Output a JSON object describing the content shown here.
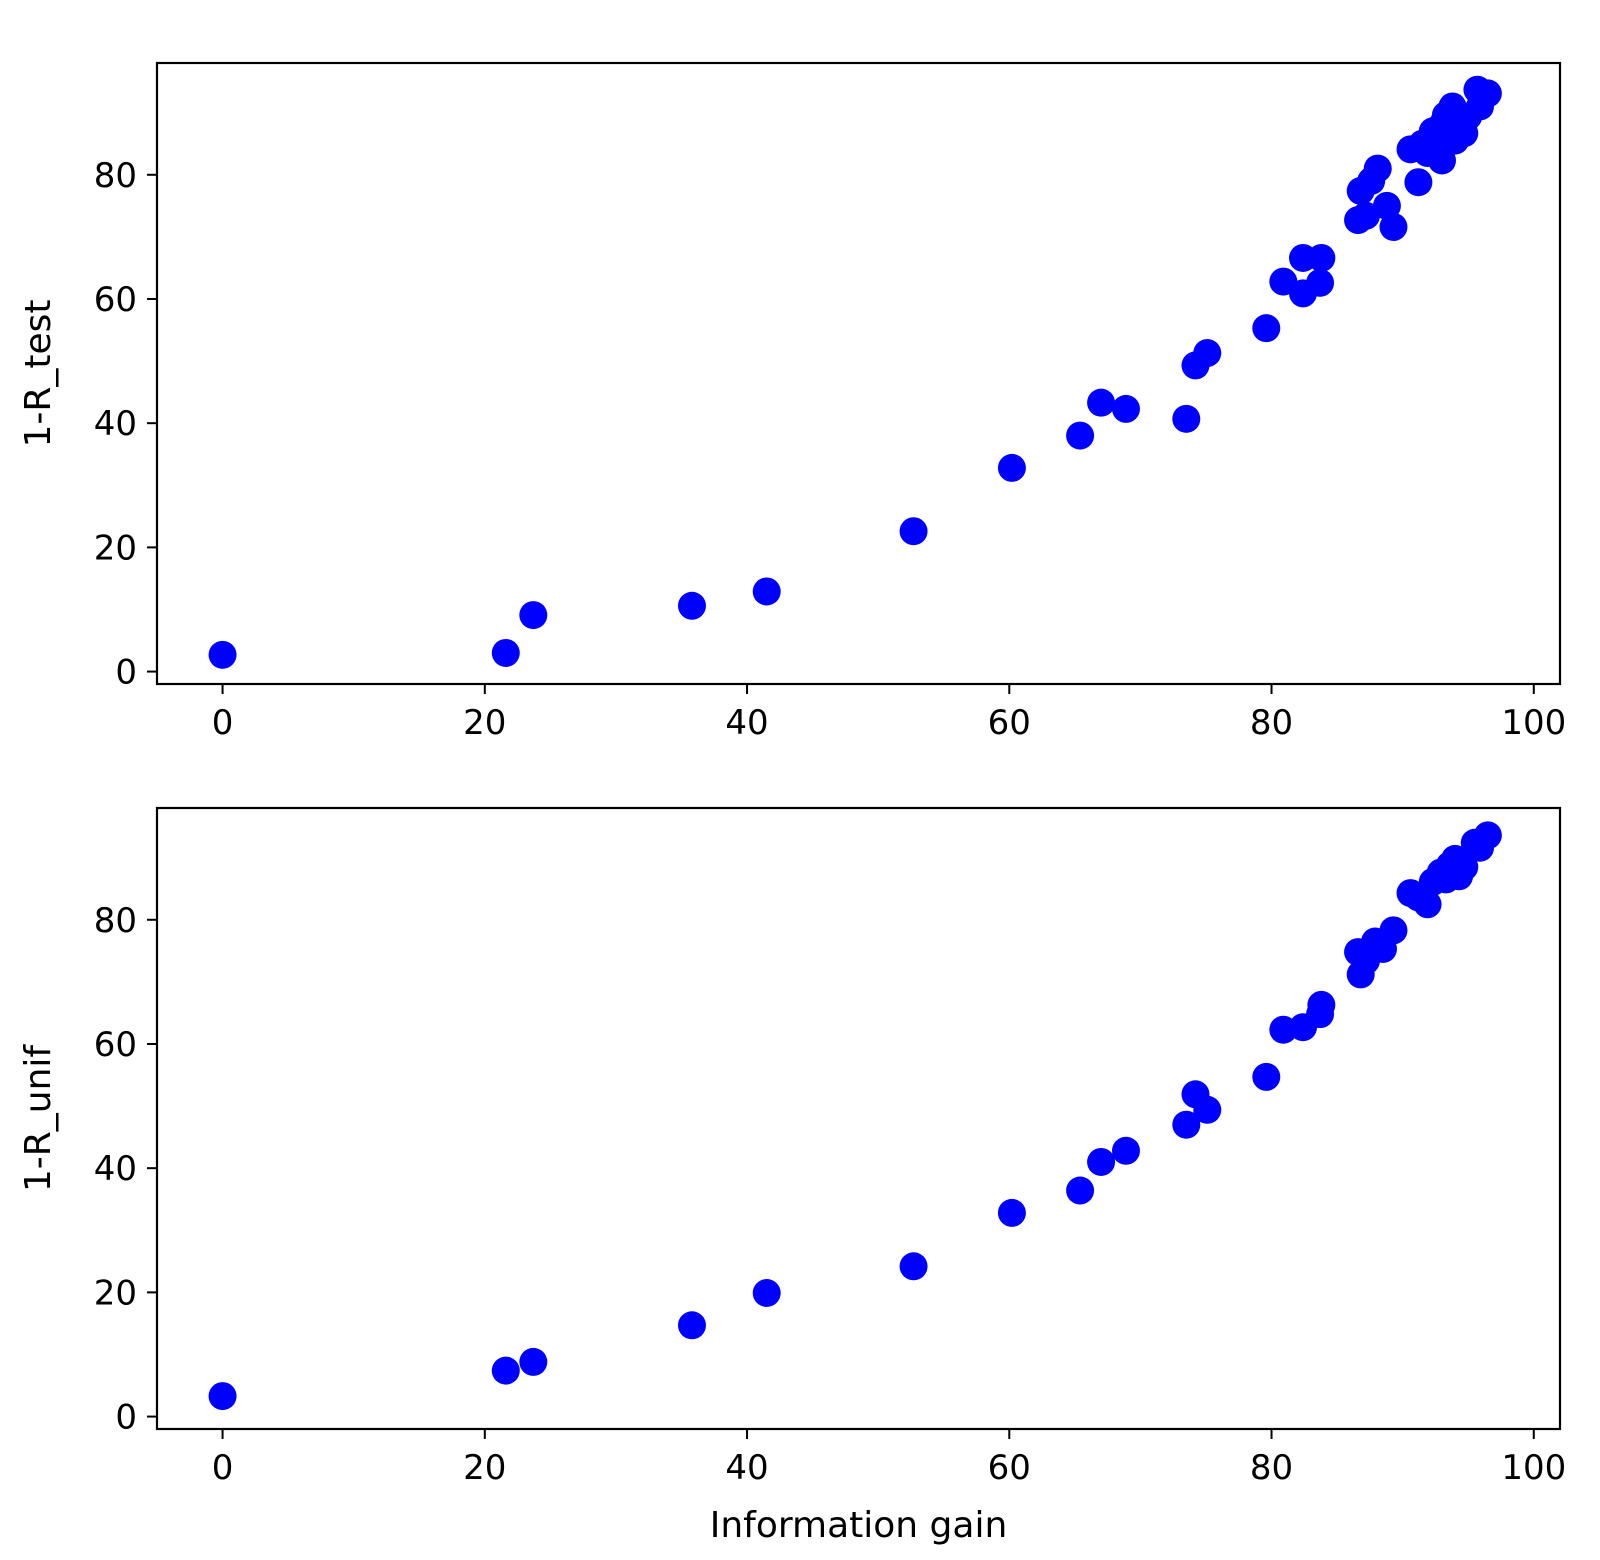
{
  "chart_data": [
    {
      "type": "scatter",
      "xlabel": "",
      "ylabel": "1-R_test",
      "xlim": [
        -5,
        102
      ],
      "ylim": [
        -2,
        98
      ],
      "xticks": [
        0,
        20,
        40,
        60,
        80,
        100
      ],
      "yticks": [
        0,
        20,
        40,
        60,
        80
      ],
      "grid": false,
      "marker_color": "#0000ff",
      "series": [
        {
          "x": [
            0,
            21.6,
            23.7,
            35.8,
            41.5,
            52.7,
            60.2,
            65.4,
            67.0,
            68.9,
            73.5,
            74.2,
            75.1,
            79.6,
            80.9,
            82.4,
            82.4,
            83.7,
            83.8,
            86.6,
            86.8,
            87.2,
            87.6,
            88.1,
            88.8,
            89.3,
            90.6,
            91.2,
            91.5,
            91.9,
            92.3,
            92.6,
            93.0,
            93.1,
            93.3,
            93.6,
            93.8,
            94.0,
            94.3,
            94.7,
            95.0,
            95.9,
            95.7,
            96.5
          ],
          "y": [
            2.7,
            3.0,
            9.1,
            10.6,
            12.9,
            22.6,
            32.8,
            38.0,
            43.3,
            42.3,
            40.7,
            49.3,
            51.3,
            55.3,
            62.8,
            60.9,
            66.6,
            62.6,
            66.6,
            72.7,
            77.4,
            73.4,
            79.0,
            81.0,
            75.0,
            71.6,
            84.1,
            78.8,
            85.0,
            83.5,
            87.0,
            85.6,
            82.3,
            88.3,
            89.6,
            86.7,
            91.0,
            85.5,
            88.6,
            86.7,
            89.4,
            91.0,
            93.7,
            93.1
          ]
        }
      ]
    },
    {
      "type": "scatter",
      "xlabel": "Information gain",
      "ylabel": "1-R_unif",
      "xlim": [
        -5,
        102
      ],
      "ylim": [
        -2,
        98
      ],
      "xticks": [
        0,
        20,
        40,
        60,
        80,
        100
      ],
      "yticks": [
        0,
        20,
        40,
        60,
        80
      ],
      "grid": false,
      "marker_color": "#0000ff",
      "series": [
        {
          "x": [
            0,
            21.6,
            23.7,
            35.8,
            41.5,
            52.7,
            60.2,
            65.4,
            67.0,
            68.9,
            73.5,
            74.2,
            75.1,
            79.6,
            80.9,
            82.4,
            83.7,
            83.8,
            86.6,
            86.8,
            87.2,
            87.9,
            88.5,
            89.3,
            90.6,
            91.2,
            91.9,
            92.3,
            92.9,
            93.3,
            93.6,
            94.0,
            94.3,
            94.7,
            95.5,
            95.9,
            96.5
          ],
          "y": [
            3.3,
            7.4,
            8.8,
            14.7,
            19.9,
            24.2,
            32.8,
            36.4,
            41.0,
            42.8,
            47.0,
            51.9,
            49.4,
            54.7,
            62.3,
            62.7,
            64.8,
            66.3,
            74.8,
            71.2,
            73.4,
            76.5,
            75.3,
            78.3,
            84.3,
            83.6,
            82.5,
            86.1,
            87.6,
            86.5,
            88.8,
            89.8,
            87.0,
            88.5,
            92.4,
            91.6,
            93.6
          ]
        }
      ]
    }
  ]
}
